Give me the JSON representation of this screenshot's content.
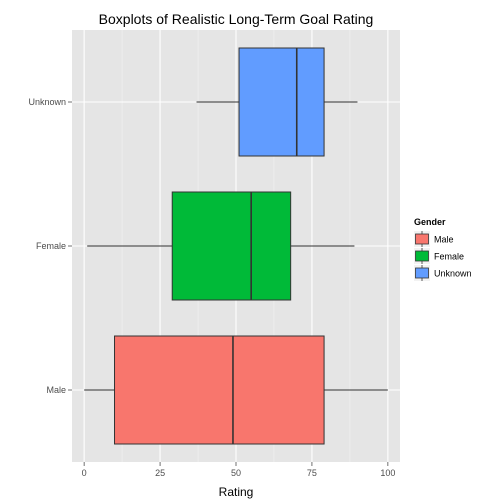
{
  "chart_data": {
    "type": "boxplot",
    "orientation": "horizontal",
    "title": "Boxplots of Realistic Long-Term Goal Rating",
    "xlabel": "Rating",
    "ylabel": "",
    "xlim": [
      -4,
      104
    ],
    "xticks": [
      0,
      25,
      50,
      75,
      100
    ],
    "xtick_labels": [
      "0",
      "25",
      "50",
      "75",
      "100"
    ],
    "categories": [
      "Male",
      "Female",
      "Unknown"
    ],
    "series": [
      {
        "name": "Male",
        "category": "Male",
        "color": "#F8766D",
        "min": 0,
        "q1": 10,
        "median": 49,
        "q3": 79,
        "max": 100
      },
      {
        "name": "Female",
        "category": "Female",
        "color": "#00BA38",
        "min": 1,
        "q1": 29,
        "median": 55,
        "q3": 68,
        "max": 89
      },
      {
        "name": "Unknown",
        "category": "Unknown",
        "color": "#619CFF",
        "min": 37,
        "q1": 51,
        "median": 70,
        "q3": 79,
        "max": 90
      }
    ],
    "legend": {
      "title": "Gender",
      "position": "right",
      "entries": [
        "Male",
        "Female",
        "Unknown"
      ]
    },
    "grid": true,
    "panel_background": "#E5E5E5"
  }
}
